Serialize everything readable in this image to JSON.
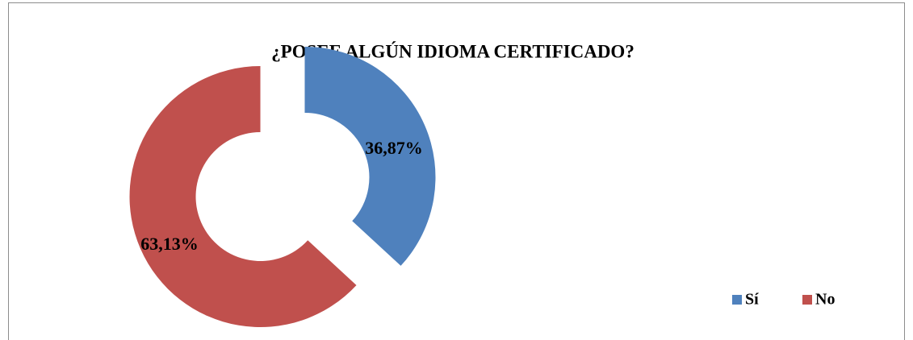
{
  "chart_data": {
    "type": "donut",
    "title": "¿POSEE ALGÚN  IDIOMA CERTIFICADO?",
    "categories": [
      "Sí",
      "No"
    ],
    "values": [
      36.87,
      63.13
    ],
    "value_labels": [
      "36,87%",
      "63,13%"
    ],
    "colors": [
      "#4f81bd",
      "#c0504d"
    ],
    "legend": "bottom-right"
  }
}
